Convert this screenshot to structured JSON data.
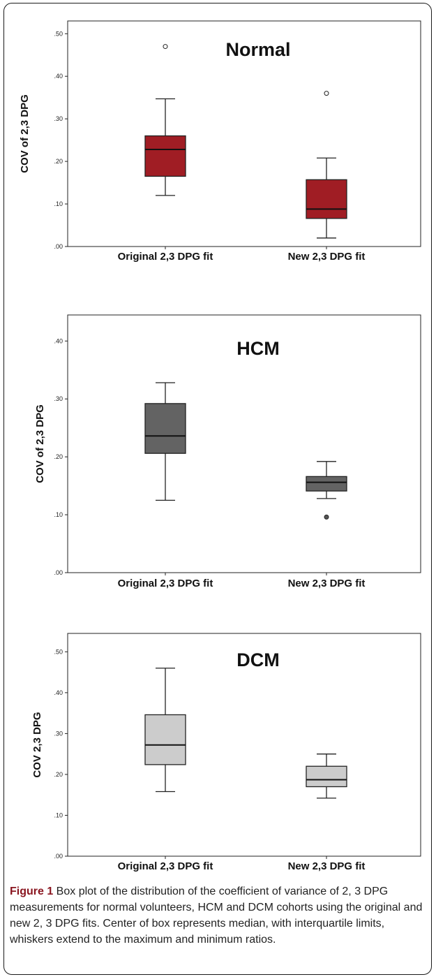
{
  "chart_data": [
    {
      "type": "box",
      "title": "Normal",
      "ylabel": "COV of 2,3 DPG",
      "ylim": [
        0,
        0.53
      ],
      "yticks": [
        ".00",
        ".10",
        ".20",
        ".30",
        ".40",
        ".50"
      ],
      "ytick_values": [
        0,
        0.1,
        0.2,
        0.3,
        0.4,
        0.5
      ],
      "categories": [
        "Original 2,3 DPG fit",
        "New 2,3 DPG fit"
      ],
      "fill_color": "#a01d24",
      "boxes": [
        {
          "min": 0.12,
          "q1": 0.165,
          "median": 0.228,
          "q3": 0.26,
          "max": 0.347,
          "outliers": [
            0.47
          ]
        },
        {
          "min": 0.02,
          "q1": 0.066,
          "median": 0.088,
          "q3": 0.157,
          "max": 0.208,
          "outliers": [
            0.36
          ]
        }
      ]
    },
    {
      "type": "box",
      "title": "HCM",
      "ylabel": "COV of 2,3 DPG",
      "ylim": [
        0,
        0.445
      ],
      "yticks": [
        ".00",
        ".10",
        ".20",
        ".30",
        ".40"
      ],
      "ytick_values": [
        0,
        0.1,
        0.2,
        0.3,
        0.4
      ],
      "categories": [
        "Original 2,3 DPG fit",
        "New 2,3 DPG fit"
      ],
      "fill_color": "#636363",
      "boxes": [
        {
          "min": 0.125,
          "q1": 0.206,
          "median": 0.236,
          "q3": 0.292,
          "max": 0.328,
          "outliers": []
        },
        {
          "min": 0.128,
          "q1": 0.141,
          "median": 0.156,
          "q3": 0.166,
          "max": 0.192,
          "outliers": [
            0.096
          ]
        }
      ]
    },
    {
      "type": "box",
      "title": "DCM",
      "ylabel": "COV 2,3 DPG",
      "ylim": [
        0,
        0.545
      ],
      "yticks": [
        ".00",
        ".10",
        ".20",
        ".30",
        ".40",
        ".50"
      ],
      "ytick_values": [
        0,
        0.1,
        0.2,
        0.3,
        0.4,
        0.5
      ],
      "categories": [
        "Original 2,3 DPG fit",
        "New 2,3 DPG fit"
      ],
      "fill_color": "#cccccc",
      "boxes": [
        {
          "min": 0.158,
          "q1": 0.224,
          "median": 0.272,
          "q3": 0.346,
          "max": 0.46,
          "outliers": []
        },
        {
          "min": 0.142,
          "q1": 0.17,
          "median": 0.187,
          "q3": 0.22,
          "max": 0.25,
          "outliers": []
        }
      ]
    }
  ],
  "caption": {
    "label": "Figure 1",
    "text": " Box plot of the distribution of the coefficient of variance of 2, 3 DPG measurements for normal volunteers, HCM and DCM cohorts using the original and new 2, 3 DPG fits. Center of box represents median, with interquartile limits, whiskers extend to the maximum and minimum ratios."
  }
}
